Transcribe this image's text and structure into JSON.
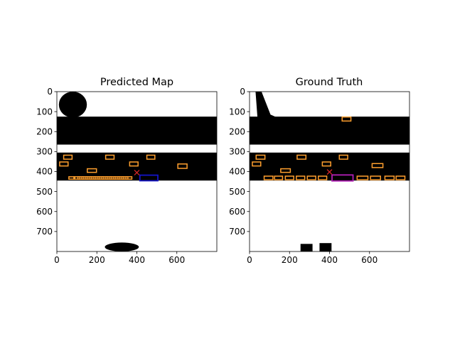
{
  "chart_data": [
    {
      "type": "map",
      "title": "Predicted Map",
      "xlim": [
        0,
        800
      ],
      "ylim": [
        800,
        0
      ],
      "xticks": [
        0,
        200,
        400,
        600
      ],
      "yticks": [
        0,
        100,
        200,
        300,
        400,
        500,
        600,
        700
      ],
      "colors": {
        "road": "#000000",
        "background": "#ffffff",
        "vehicle": "#ff9f2e",
        "ego": "#1414c8",
        "marker": "#d62728"
      },
      "ego_marker": {
        "x": 400,
        "y": 405
      },
      "ego_box": {
        "x": 460,
        "y": 432,
        "w": 90,
        "h": 28,
        "color": "#1414c8"
      },
      "vehicles": [
        {
          "x": 55,
          "y": 328,
          "w": 42,
          "h": 20
        },
        {
          "x": 35,
          "y": 362,
          "w": 42,
          "h": 20
        },
        {
          "x": 265,
          "y": 328,
          "w": 42,
          "h": 20
        },
        {
          "x": 470,
          "y": 328,
          "w": 40,
          "h": 20
        },
        {
          "x": 385,
          "y": 362,
          "w": 42,
          "h": 20
        },
        {
          "x": 175,
          "y": 395,
          "w": 46,
          "h": 18
        },
        {
          "x": 628,
          "y": 373,
          "w": 46,
          "h": 22
        },
        {
          "x": 75,
          "y": 432,
          "w": 30,
          "h": 12
        },
        {
          "x": 100,
          "y": 432,
          "w": 30,
          "h": 12
        },
        {
          "x": 120,
          "y": 432,
          "w": 30,
          "h": 12
        },
        {
          "x": 140,
          "y": 432,
          "w": 30,
          "h": 12
        },
        {
          "x": 160,
          "y": 432,
          "w": 30,
          "h": 12
        },
        {
          "x": 180,
          "y": 432,
          "w": 30,
          "h": 12
        },
        {
          "x": 200,
          "y": 432,
          "w": 30,
          "h": 12
        },
        {
          "x": 220,
          "y": 432,
          "w": 30,
          "h": 12
        },
        {
          "x": 240,
          "y": 432,
          "w": 30,
          "h": 12
        },
        {
          "x": 260,
          "y": 432,
          "w": 30,
          "h": 12
        },
        {
          "x": 280,
          "y": 432,
          "w": 30,
          "h": 12
        },
        {
          "x": 300,
          "y": 432,
          "w": 30,
          "h": 12
        },
        {
          "x": 320,
          "y": 432,
          "w": 30,
          "h": 12
        },
        {
          "x": 340,
          "y": 432,
          "w": 30,
          "h": 12
        },
        {
          "x": 360,
          "y": 432,
          "w": 30,
          "h": 12
        }
      ],
      "road_regions": [
        {
          "kind": "band",
          "x0": 0,
          "x1": 800,
          "y0": 125,
          "y1": 265
        },
        {
          "kind": "band",
          "x0": 0,
          "x1": 800,
          "y0": 305,
          "y1": 445
        },
        {
          "kind": "blob",
          "x0": 10,
          "x1": 150,
          "y0": 0,
          "y1": 130
        },
        {
          "kind": "blob",
          "x0": 240,
          "x1": 410,
          "y0": 755,
          "y1": 800
        }
      ]
    },
    {
      "type": "map",
      "title": "Ground Truth",
      "xlim": [
        0,
        800
      ],
      "ylim": [
        800,
        0
      ],
      "xticks": [
        0,
        200,
        400,
        600
      ],
      "yticks": [
        0,
        100,
        200,
        300,
        400,
        500,
        600,
        700
      ],
      "colors": {
        "road": "#000000",
        "background": "#ffffff",
        "vehicle": "#ff9f2e",
        "ego": "#b01eb4",
        "marker": "#d62728"
      },
      "ego_marker": {
        "x": 400,
        "y": 402
      },
      "ego_box": {
        "x": 465,
        "y": 432,
        "w": 105,
        "h": 30,
        "color": "#b01eb4"
      },
      "vehicles": [
        {
          "x": 485,
          "y": 137,
          "w": 44,
          "h": 20
        },
        {
          "x": 55,
          "y": 328,
          "w": 44,
          "h": 20
        },
        {
          "x": 35,
          "y": 362,
          "w": 42,
          "h": 20
        },
        {
          "x": 260,
          "y": 328,
          "w": 44,
          "h": 20
        },
        {
          "x": 470,
          "y": 328,
          "w": 42,
          "h": 20
        },
        {
          "x": 385,
          "y": 362,
          "w": 42,
          "h": 20
        },
        {
          "x": 180,
          "y": 395,
          "w": 48,
          "h": 18
        },
        {
          "x": 640,
          "y": 370,
          "w": 54,
          "h": 20
        },
        {
          "x": 95,
          "y": 432,
          "w": 44,
          "h": 18
        },
        {
          "x": 145,
          "y": 432,
          "w": 40,
          "h": 18
        },
        {
          "x": 200,
          "y": 432,
          "w": 42,
          "h": 18
        },
        {
          "x": 255,
          "y": 432,
          "w": 42,
          "h": 18
        },
        {
          "x": 310,
          "y": 432,
          "w": 42,
          "h": 18
        },
        {
          "x": 365,
          "y": 432,
          "w": 42,
          "h": 18
        },
        {
          "x": 565,
          "y": 432,
          "w": 54,
          "h": 18
        },
        {
          "x": 630,
          "y": 432,
          "w": 50,
          "h": 18
        },
        {
          "x": 700,
          "y": 432,
          "w": 46,
          "h": 18
        },
        {
          "x": 755,
          "y": 432,
          "w": 44,
          "h": 18
        }
      ],
      "road_regions": [
        {
          "kind": "band",
          "x0": 0,
          "x1": 800,
          "y0": 125,
          "y1": 265
        },
        {
          "kind": "band",
          "x0": 0,
          "x1": 800,
          "y0": 305,
          "y1": 445
        },
        {
          "kind": "strip",
          "x0": 30,
          "x1": 105,
          "y0": 0,
          "y1": 135
        },
        {
          "kind": "block",
          "x0": 255,
          "x1": 315,
          "y0": 762,
          "y1": 800
        },
        {
          "kind": "block",
          "x0": 350,
          "x1": 410,
          "y0": 758,
          "y1": 800
        }
      ]
    }
  ]
}
